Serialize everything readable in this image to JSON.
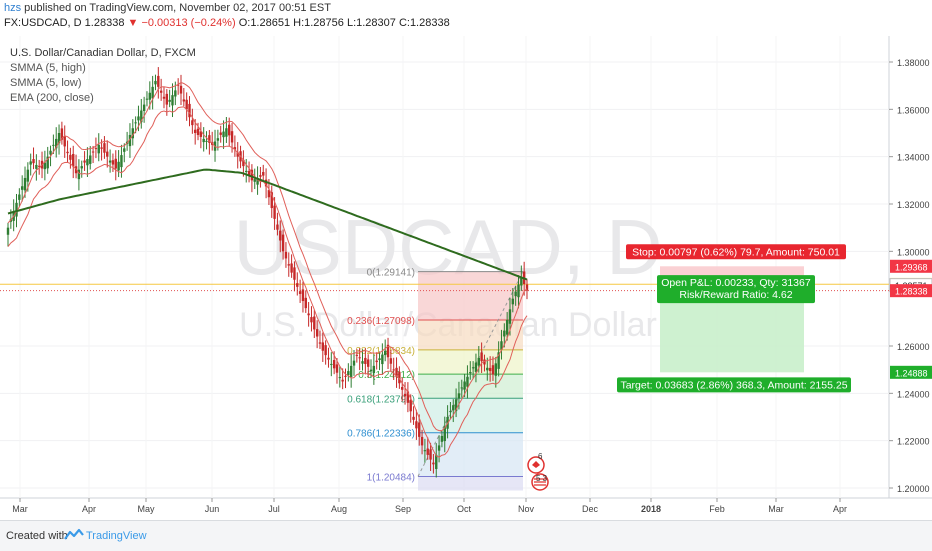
{
  "header": {
    "user": "hzs",
    "published": " published on TradingView.com, November 02, 2017 00:51 EST",
    "symbol_line": "FX:USDCAD, D 1.28338",
    "change": "▼ −0.00313 (−0.24%)",
    "ohlc": "O:1.28651 H:1.28756 L:1.28307 C:1.28338"
  },
  "legend": {
    "title": "U.S. Dollar/Canadian Dollar, D, FXCM",
    "line1": "SMMA (5, high)",
    "line2": "SMMA (5, low)",
    "line3": "EMA (200, close)"
  },
  "watermark": {
    "symbol": "USDCAD, D",
    "name": "U.S. Dollar/Canadian Dollar"
  },
  "price_axis": {
    "ticks": [
      "1.38000",
      "1.36000",
      "1.34000",
      "1.32000",
      "1.30000",
      "1.26000",
      "1.24000",
      "1.22000",
      "1.20000"
    ],
    "tick_values": [
      1.38,
      1.36,
      1.34,
      1.32,
      1.3,
      1.26,
      1.24,
      1.22,
      1.2
    ],
    "badges": [
      {
        "label": "1.29368",
        "value": 1.29368,
        "color": "#f23645",
        "text": "#ffffff"
      },
      {
        "label": "1.28609",
        "value": 1.28609,
        "color": "#fff3c4",
        "text": "#333333"
      },
      {
        "label": "1.28571",
        "value": 1.28571,
        "color": "#ffffff",
        "text": "#333333"
      },
      {
        "label": "1.28338",
        "value": 1.28338,
        "color": "#f23645",
        "text": "#ffffff"
      },
      {
        "label": "1.24888",
        "value": 1.24888,
        "color": "#1fae2b",
        "text": "#ffffff"
      }
    ]
  },
  "time_axis": {
    "labels": [
      "Mar",
      "Apr",
      "May",
      "Jun",
      "Jul",
      "Aug",
      "Sep",
      "Oct",
      "Nov",
      "Dec",
      "2018",
      "Feb",
      "Mar",
      "Apr"
    ]
  },
  "fibonacci": [
    {
      "label": "0(1.29141)",
      "level": 0,
      "price": 1.29141,
      "color": "#888888"
    },
    {
      "label": "0.236(1.27098)",
      "level": 0.236,
      "price": 1.27098,
      "color": "#e05050"
    },
    {
      "label": "0.382(1.25834)",
      "level": 0.382,
      "price": 1.25834,
      "color": "#c9b23a"
    },
    {
      "label": "0.5(1.24812)",
      "level": 0.5,
      "price": 1.24812,
      "color": "#3fae49"
    },
    {
      "label": "0.618(1.23790)",
      "level": 0.618,
      "price": 1.2379,
      "color": "#3aa07a"
    },
    {
      "label": "0.786(1.22336)",
      "level": 0.786,
      "price": 1.22336,
      "color": "#2f8fd0"
    },
    {
      "label": "1(1.20484)",
      "level": 1,
      "price": 1.20484,
      "color": "#7a7ad0"
    }
  ],
  "position": {
    "stop_label": "Stop: 0.00797 (0.62%) 79.7, Amount: 750.01",
    "pnl_label": "Open P&L: 0.00233, Qty: 31367",
    "rr_label": "Risk/Reward Ratio: 4.62",
    "target_label": "Target: 0.03683 (2.86%) 368.3, Amount: 2155.25",
    "entry": 1.28571,
    "stop": 1.29368,
    "target": 1.24888
  },
  "events": {
    "top_count": "6",
    "bottom_count": "5 3"
  },
  "colors": {
    "up": "#2e7d32",
    "down": "#c62828",
    "ema": "#2e6b1e",
    "smma": "#e0605a",
    "current_price_line": "#f5c842"
  },
  "footer": {
    "created": "Created with",
    "brand": "TradingView"
  }
}
